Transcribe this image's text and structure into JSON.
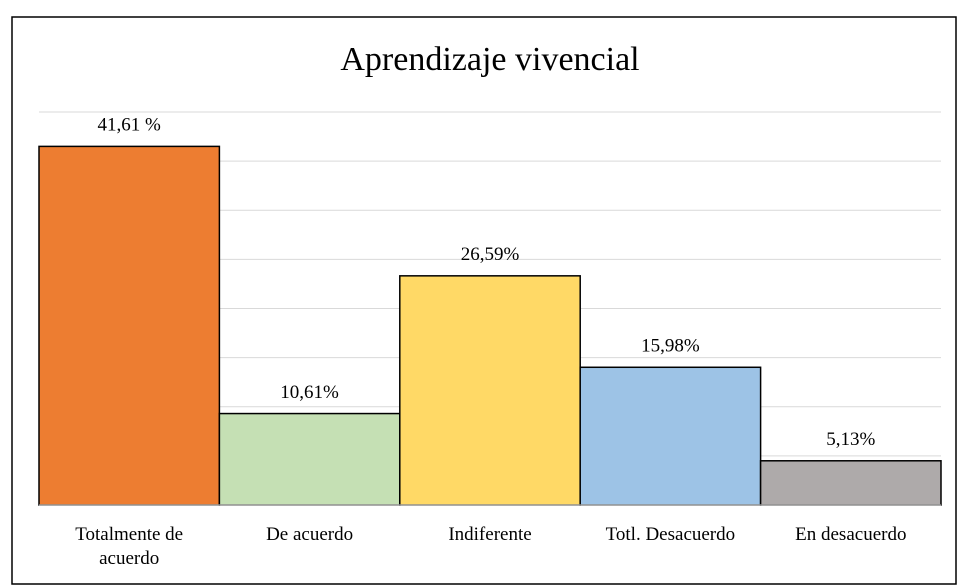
{
  "chart_data": {
    "type": "bar",
    "title": "Aprendizaje vivencial",
    "categories": [
      "Totalmente de acuerdo",
      "De acuerdo",
      "Indiferente",
      "Totl. Desacuerdo",
      "En desacuerdo"
    ],
    "values": [
      41.61,
      10.61,
      26.59,
      15.98,
      5.13
    ],
    "value_labels": [
      "41,61 %",
      "10,61%",
      "26,59%",
      "15,98%",
      "5,13%"
    ],
    "colors": [
      "#ED7D31",
      "#C5E0B4",
      "#FFD966",
      "#9DC3E6",
      "#AEAAAA"
    ],
    "ylim": [
      0,
      45.6
    ],
    "yticks": [
      0,
      5.7,
      11.4,
      17.1,
      22.8,
      28.5,
      34.2,
      39.9,
      45.6
    ],
    "grid": true
  }
}
